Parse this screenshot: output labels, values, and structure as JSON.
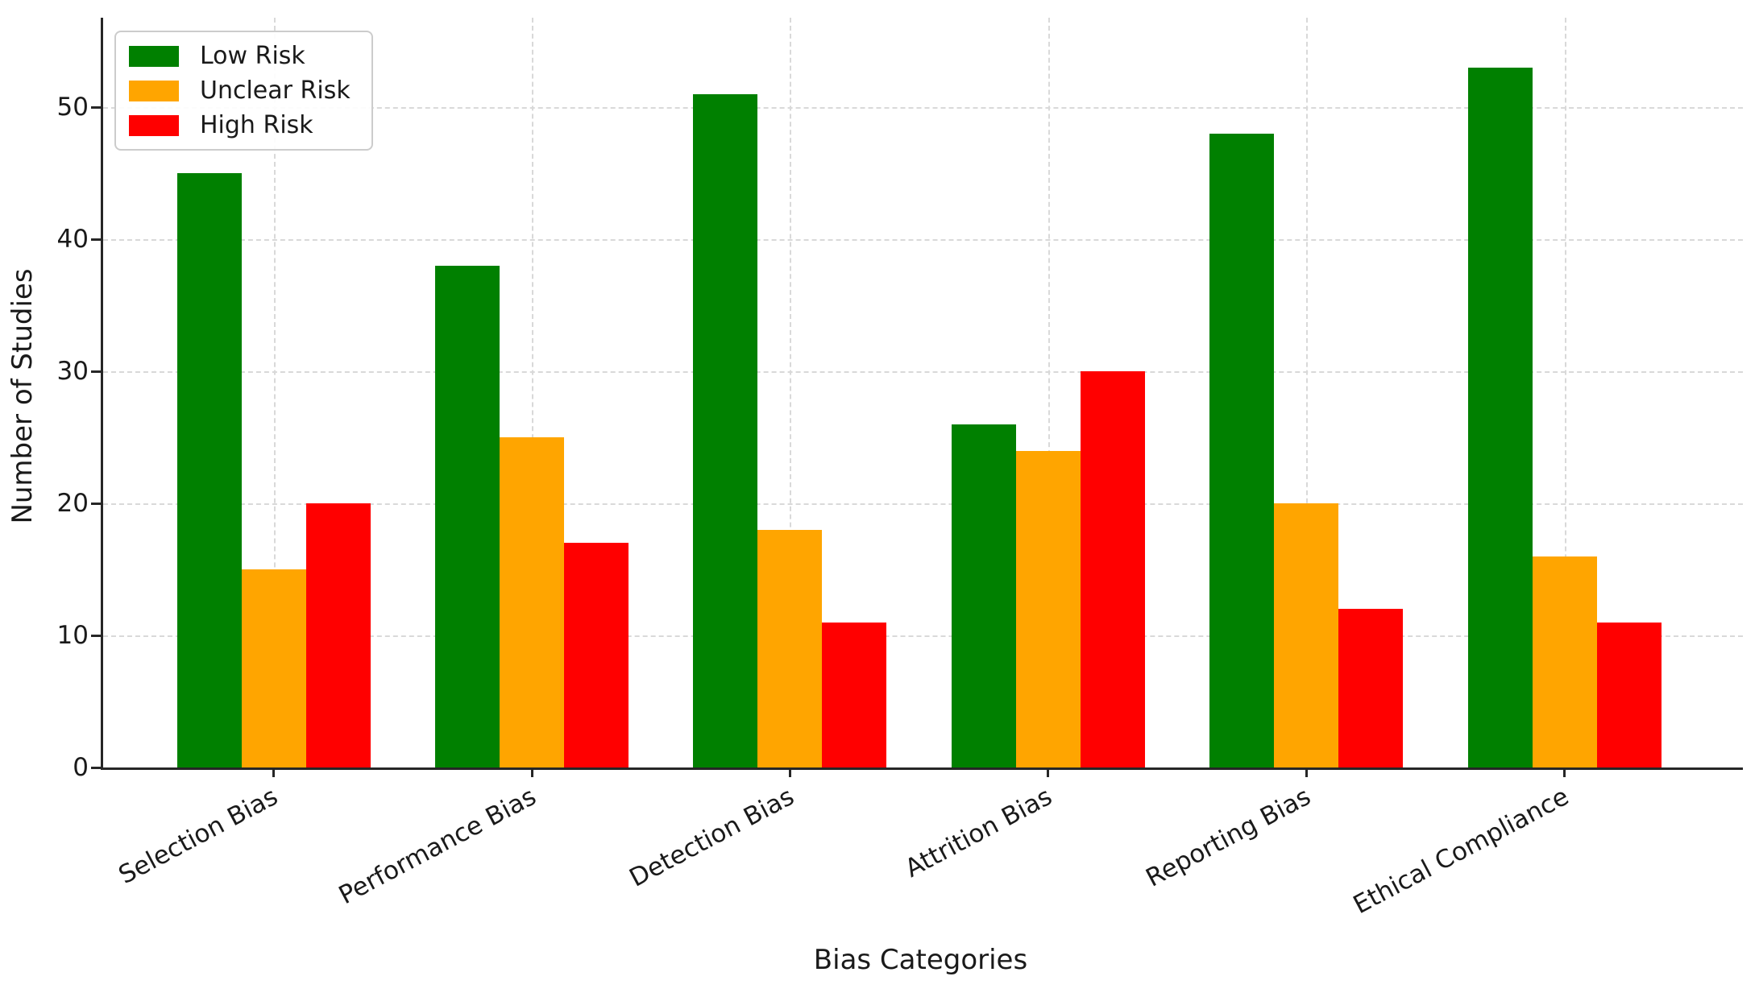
{
  "figure": {
    "background_color": "#ffffff",
    "axis_color": "#262626",
    "grid_color": "#d9d9d9",
    "text_color": "#1a1a1a"
  },
  "chart_data": {
    "type": "bar",
    "title": "",
    "xlabel": "Bias Categories",
    "ylabel": "Number of Studies",
    "categories": [
      "Selection Bias",
      "Performance Bias",
      "Detection Bias",
      "Attrition Bias",
      "Reporting Bias",
      "Ethical Compliance"
    ],
    "series": [
      {
        "name": "Low Risk",
        "color": "#008000",
        "values": [
          45,
          38,
          51,
          26,
          48,
          53
        ]
      },
      {
        "name": "Unclear Risk",
        "color": "#FFA500",
        "values": [
          15,
          25,
          18,
          24,
          20,
          16
        ]
      },
      {
        "name": "High Risk",
        "color": "#FF0000",
        "values": [
          20,
          17,
          11,
          30,
          12,
          11
        ]
      }
    ],
    "yticks": [
      0,
      10,
      20,
      30,
      40,
      50
    ],
    "ylim": [
      0,
      56.8
    ],
    "grid": true,
    "grid_style": "dashed",
    "legend_position": "upper-left",
    "x_tick_rotation_deg": 28
  }
}
